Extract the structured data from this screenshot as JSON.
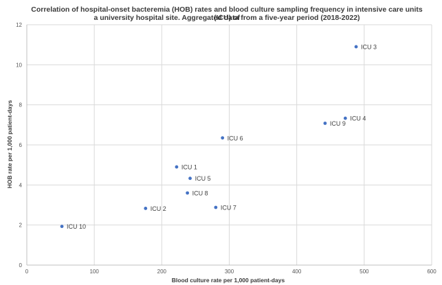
{
  "chart_data": {
    "type": "scatter",
    "title_line1": "Correlation of hospital-onset bacteremia (HOB) rates and blood culture sampling frequency in intensive care units (ICU) of",
    "title_line2": "a university hospital site. Aggregated data from a five-year period (2018-2022)",
    "xlabel": "Blood culture rate per 1,000 patient-days",
    "ylabel": "HOB rate per 1,000 patient-days",
    "xlim": [
      0,
      600
    ],
    "ylim": [
      0,
      12
    ],
    "x_ticks": [
      "0",
      "100",
      "200",
      "300",
      "400",
      "500",
      "600"
    ],
    "y_ticks": [
      "0",
      "2",
      "4",
      "6",
      "8",
      "10",
      "12"
    ],
    "grid": true,
    "legend": "none",
    "marker_color": "#4472C4",
    "points": [
      {
        "label": "ICU 1",
        "x": 222,
        "y": 4.9
      },
      {
        "label": "ICU 2",
        "x": 176,
        "y": 2.83
      },
      {
        "label": "ICU 3",
        "x": 488,
        "y": 10.9
      },
      {
        "label": "ICU 4",
        "x": 472,
        "y": 7.33
      },
      {
        "label": "ICU 5",
        "x": 242,
        "y": 4.33
      },
      {
        "label": "ICU 6",
        "x": 290,
        "y": 6.35
      },
      {
        "label": "ICU 7",
        "x": 280,
        "y": 2.88
      },
      {
        "label": "ICU 8",
        "x": 238,
        "y": 3.6
      },
      {
        "label": "ICU 9",
        "x": 442,
        "y": 7.08
      },
      {
        "label": "ICU 10",
        "x": 52,
        "y": 1.93
      }
    ]
  }
}
